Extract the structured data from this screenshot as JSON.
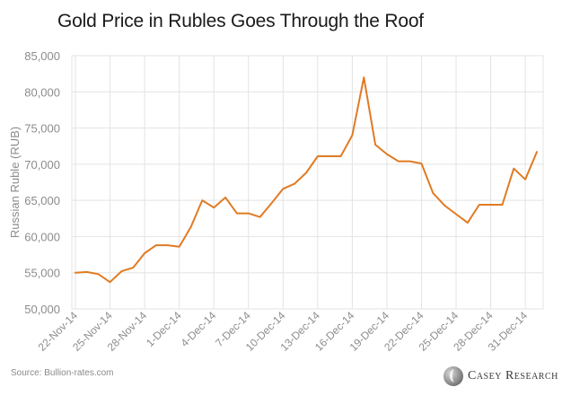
{
  "title": "Gold Price in Rubles Goes Through the Roof",
  "source": "Source: Bullion-rates.com",
  "logo": {
    "text": "Casey Research",
    "icon": "casey-research-logo-icon"
  },
  "colors": {
    "line": "#e07b24",
    "grid": "#e3e3e3",
    "axis_text": "#8c8c8c",
    "title": "#1a1a1a"
  },
  "chart_data": {
    "type": "line",
    "title": "Gold Price in Rubles Goes Through the Roof",
    "xlabel": "",
    "ylabel": "Russian Ruble (RUB)",
    "ylim": [
      50000,
      85000
    ],
    "yticks": [
      50000,
      55000,
      60000,
      65000,
      70000,
      75000,
      80000,
      85000
    ],
    "ytick_labels": [
      "50,000",
      "55,000",
      "60,000",
      "65,000",
      "70,000",
      "75,000",
      "80,000",
      "85,000"
    ],
    "xtick_labels": [
      "22-Nov-14",
      "25-Nov-14",
      "28-Nov-14",
      "1-Dec-14",
      "4-Dec-14",
      "7-Dec-14",
      "10-Dec-14",
      "13-Dec-14",
      "16-Dec-14",
      "19-Dec-14",
      "22-Dec-14",
      "25-Dec-14",
      "28-Dec-14",
      "31-Dec-14"
    ],
    "grid": true,
    "legend": "none",
    "series": [
      {
        "x": [
          "22-Nov-14",
          "23-Nov-14",
          "24-Nov-14",
          "25-Nov-14",
          "26-Nov-14",
          "27-Nov-14",
          "28-Nov-14",
          "29-Nov-14",
          "30-Nov-14",
          "1-Dec-14",
          "2-Dec-14",
          "3-Dec-14",
          "4-Dec-14",
          "5-Dec-14",
          "6-Dec-14",
          "7-Dec-14",
          "8-Dec-14",
          "9-Dec-14",
          "10-Dec-14",
          "11-Dec-14",
          "12-Dec-14",
          "13-Dec-14",
          "14-Dec-14",
          "15-Dec-14",
          "16-Dec-14",
          "17-Dec-14",
          "18-Dec-14",
          "19-Dec-14",
          "20-Dec-14",
          "21-Dec-14",
          "22-Dec-14",
          "23-Dec-14",
          "24-Dec-14",
          "25-Dec-14",
          "26-Dec-14",
          "27-Dec-14",
          "28-Dec-14",
          "29-Dec-14",
          "30-Dec-14",
          "31-Dec-14",
          "1-Jan-15"
        ],
        "values": [
          55000,
          55100,
          54800,
          53700,
          55200,
          55700,
          57700,
          58800,
          58800,
          58600,
          61300,
          65000,
          64000,
          65400,
          63200,
          63200,
          62700,
          64600,
          66600,
          67300,
          68800,
          71100,
          71100,
          71100,
          74000,
          82000,
          72700,
          71400,
          70400,
          70400,
          70100,
          66000,
          64300,
          63100,
          61900,
          64400,
          64400,
          64400,
          69400,
          67900,
          71700
        ]
      }
    ]
  }
}
